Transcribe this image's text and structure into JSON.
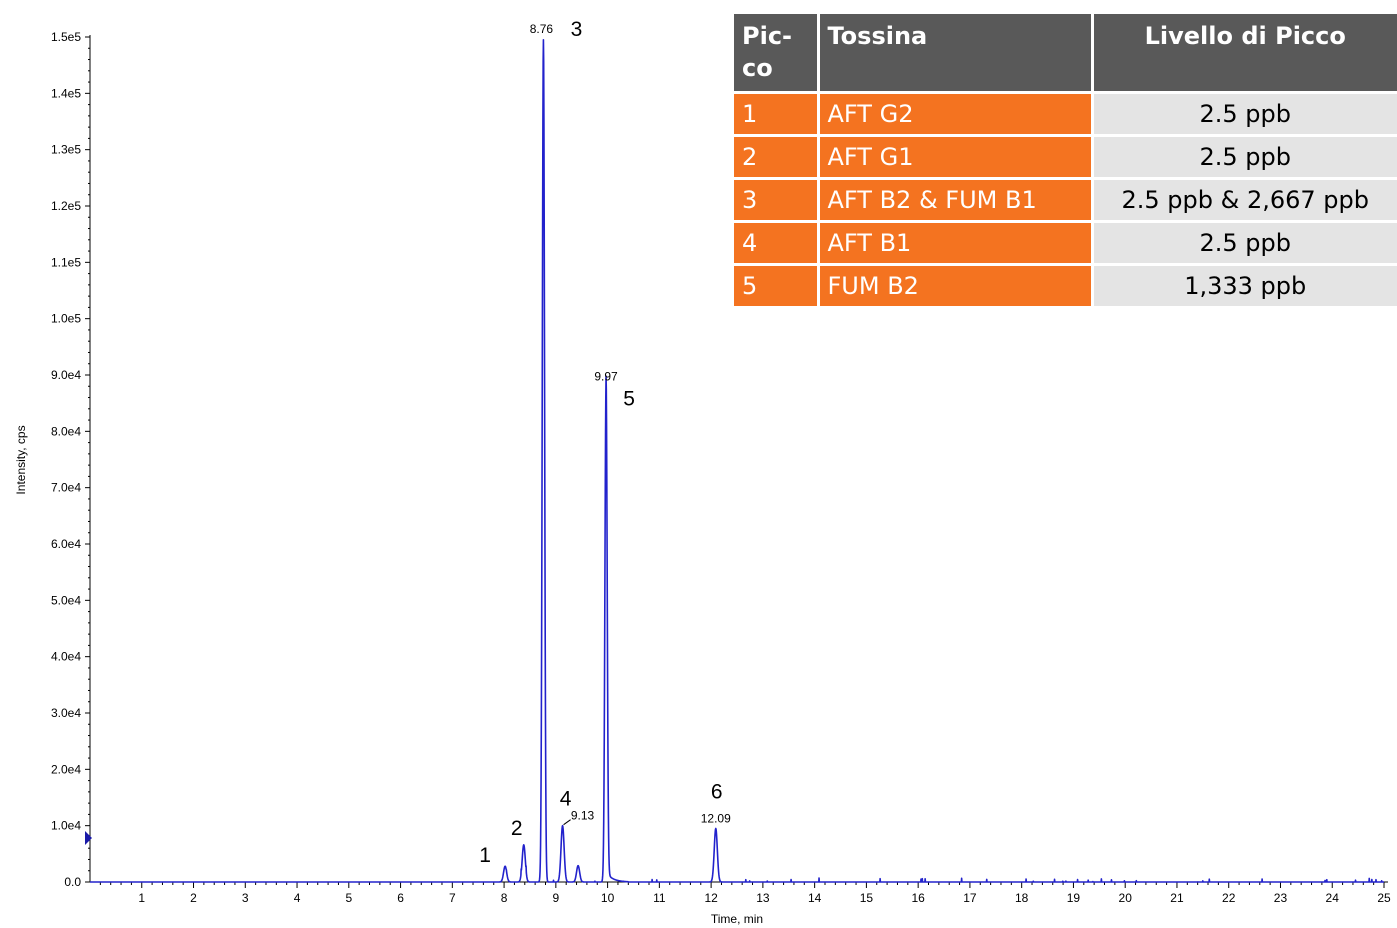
{
  "chart_data": {
    "type": "line",
    "xlabel": "Time, min",
    "ylabel": "Intensity, cps",
    "xlim": [
      0,
      25
    ],
    "ylim": [
      0,
      150000
    ],
    "x_ticks": [
      "1",
      "2",
      "3",
      "4",
      "5",
      "6",
      "7",
      "8",
      "9",
      "10",
      "11",
      "12",
      "13",
      "14",
      "15",
      "16",
      "17",
      "18",
      "19",
      "20",
      "21",
      "22",
      "23",
      "24",
      "25"
    ],
    "y_ticks": [
      {
        "value": 0,
        "label": "0.0"
      },
      {
        "value": 10000,
        "label": "1.0e4"
      },
      {
        "value": 20000,
        "label": "2.0e4"
      },
      {
        "value": 30000,
        "label": "3.0e4"
      },
      {
        "value": 40000,
        "label": "4.0e4"
      },
      {
        "value": 50000,
        "label": "5.0e4"
      },
      {
        "value": 60000,
        "label": "6.0e4"
      },
      {
        "value": 70000,
        "label": "7.0e4"
      },
      {
        "value": 80000,
        "label": "8.0e4"
      },
      {
        "value": 90000,
        "label": "9.0e4"
      },
      {
        "value": 100000,
        "label": "1.0e5"
      },
      {
        "value": 110000,
        "label": "1.1e5"
      },
      {
        "value": 120000,
        "label": "1.2e5"
      },
      {
        "value": 130000,
        "label": "1.3e5"
      },
      {
        "value": 140000,
        "label": "1.4e5"
      },
      {
        "value": 150000,
        "label": "1.5e5"
      }
    ],
    "line_color": "#2222cc",
    "peaks": [
      {
        "number": "1",
        "rt": 8.02,
        "height": 2800,
        "rt_label": ""
      },
      {
        "number": "2",
        "rt": 8.38,
        "height": 6600,
        "rt_label": ""
      },
      {
        "number": "3",
        "rt": 8.76,
        "height": 149500,
        "rt_label": "8.76"
      },
      {
        "number": "4",
        "rt": 9.13,
        "height": 10000,
        "rt_label": "9.13"
      },
      {
        "number": "",
        "rt": 9.43,
        "height": 2900,
        "rt_label": ""
      },
      {
        "number": "5",
        "rt": 9.97,
        "height": 88000,
        "rt_label": "9.97"
      },
      {
        "number": "6",
        "rt": 12.09,
        "height": 9500,
        "rt_label": "12.09"
      }
    ]
  },
  "table": {
    "headers": {
      "peak": "Pic-co",
      "toxin": "Tossina",
      "level": "Livello di Picco"
    },
    "rows": [
      {
        "peak": "1",
        "toxin": "AFT G2",
        "level": "2.5 ppb"
      },
      {
        "peak": "2",
        "toxin": "AFT G1",
        "level": "2.5 ppb"
      },
      {
        "peak": "3",
        "toxin": "AFT B2 & FUM B1",
        "level": "2.5 ppb & 2,667 ppb"
      },
      {
        "peak": "4",
        "toxin": "AFT B1",
        "level": "2.5 ppb"
      },
      {
        "peak": "5",
        "toxin": "FUM B2",
        "level": "1,333 ppb"
      }
    ]
  }
}
